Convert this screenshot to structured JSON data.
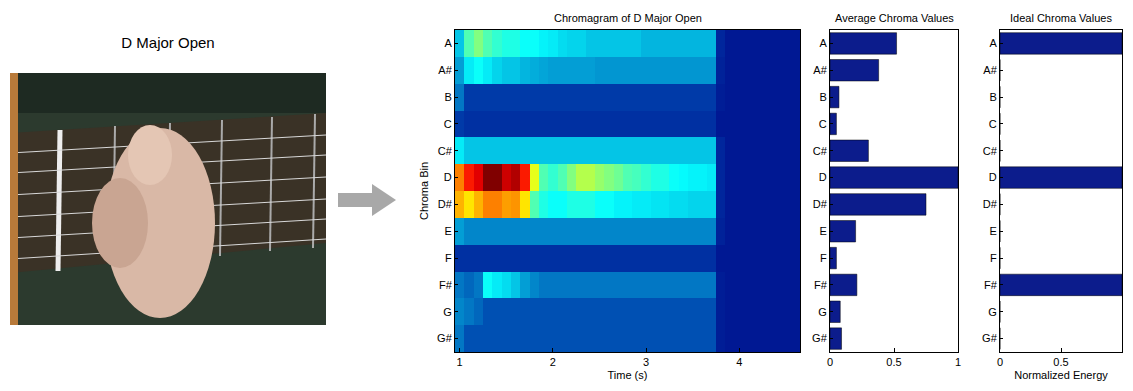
{
  "panel": {
    "title": "D Major Open"
  },
  "chart_data": [
    {
      "type": "heatmap",
      "title": "Chromagram of D Major Open",
      "x_label": "Time (s)",
      "y_label": "Chroma Bin",
      "x": [
        1.0,
        1.1,
        1.2,
        1.3,
        1.4,
        1.5,
        1.6,
        1.7,
        1.8,
        1.9,
        2.0,
        2.1,
        2.2,
        2.3,
        2.4,
        2.5,
        2.6,
        2.7,
        2.8,
        2.9,
        3.0,
        3.1,
        3.2,
        3.3,
        3.4,
        3.5,
        3.6,
        3.7,
        3.8,
        3.9,
        4.0,
        4.1,
        4.2,
        4.3,
        4.4,
        4.5,
        4.6
      ],
      "categories": [
        "A",
        "A#",
        "B",
        "C",
        "C#",
        "D",
        "D#",
        "E",
        "F",
        "F#",
        "G",
        "G#"
      ],
      "cells": [
        [
          0.3,
          0.45,
          0.5,
          0.45,
          0.42,
          0.4,
          0.4,
          0.38,
          0.38,
          0.36,
          0.35,
          0.33,
          0.32,
          0.32,
          0.3,
          0.3,
          0.3,
          0.3,
          0.3,
          0.3,
          0.28,
          0.28,
          0.28,
          0.28,
          0.28,
          0.28,
          0.28,
          0.28,
          0.08,
          0.05,
          0.05,
          0.05,
          0.05,
          0.05,
          0.05,
          0.05,
          0.05
        ],
        [
          0.25,
          0.35,
          0.38,
          0.35,
          0.32,
          0.3,
          0.3,
          0.28,
          0.27,
          0.26,
          0.25,
          0.25,
          0.25,
          0.25,
          0.25,
          0.24,
          0.24,
          0.24,
          0.24,
          0.24,
          0.24,
          0.24,
          0.24,
          0.24,
          0.24,
          0.24,
          0.24,
          0.24,
          0.07,
          0.05,
          0.05,
          0.05,
          0.05,
          0.05,
          0.05,
          0.05,
          0.05
        ],
        [
          0.2,
          0.12,
          0.12,
          0.12,
          0.12,
          0.12,
          0.12,
          0.12,
          0.12,
          0.12,
          0.12,
          0.12,
          0.12,
          0.12,
          0.12,
          0.12,
          0.12,
          0.12,
          0.12,
          0.12,
          0.12,
          0.12,
          0.12,
          0.12,
          0.12,
          0.12,
          0.12,
          0.12,
          0.06,
          0.05,
          0.05,
          0.05,
          0.05,
          0.05,
          0.05,
          0.05,
          0.05
        ],
        [
          0.12,
          0.1,
          0.1,
          0.1,
          0.1,
          0.1,
          0.1,
          0.1,
          0.1,
          0.1,
          0.1,
          0.1,
          0.1,
          0.1,
          0.1,
          0.1,
          0.1,
          0.1,
          0.1,
          0.1,
          0.1,
          0.1,
          0.1,
          0.1,
          0.1,
          0.1,
          0.1,
          0.1,
          0.05,
          0.05,
          0.05,
          0.05,
          0.05,
          0.05,
          0.05,
          0.05,
          0.05
        ],
        [
          0.35,
          0.3,
          0.3,
          0.3,
          0.3,
          0.3,
          0.3,
          0.3,
          0.3,
          0.3,
          0.3,
          0.3,
          0.3,
          0.3,
          0.3,
          0.3,
          0.3,
          0.3,
          0.3,
          0.3,
          0.3,
          0.3,
          0.3,
          0.3,
          0.3,
          0.3,
          0.3,
          0.3,
          0.08,
          0.05,
          0.05,
          0.05,
          0.05,
          0.05,
          0.05,
          0.05,
          0.05
        ],
        [
          0.75,
          0.85,
          0.9,
          1,
          1,
          0.92,
          0.95,
          0.85,
          0.6,
          0.45,
          0.42,
          0.45,
          0.5,
          0.55,
          0.55,
          0.52,
          0.5,
          0.48,
          0.45,
          0.44,
          0.42,
          0.4,
          0.4,
          0.38,
          0.37,
          0.36,
          0.36,
          0.35,
          0.08,
          0.05,
          0.05,
          0.05,
          0.05,
          0.05,
          0.05,
          0.05,
          0.05
        ],
        [
          0.7,
          0.65,
          0.7,
          0.75,
          0.75,
          0.72,
          0.73,
          0.65,
          0.45,
          0.4,
          0.38,
          0.38,
          0.4,
          0.4,
          0.4,
          0.38,
          0.38,
          0.36,
          0.36,
          0.35,
          0.35,
          0.34,
          0.34,
          0.33,
          0.33,
          0.32,
          0.32,
          0.32,
          0.08,
          0.05,
          0.05,
          0.05,
          0.05,
          0.05,
          0.05,
          0.05,
          0.05
        ],
        [
          0.25,
          0.22,
          0.22,
          0.22,
          0.22,
          0.22,
          0.22,
          0.22,
          0.22,
          0.22,
          0.22,
          0.22,
          0.22,
          0.22,
          0.22,
          0.22,
          0.22,
          0.22,
          0.22,
          0.22,
          0.22,
          0.22,
          0.22,
          0.22,
          0.22,
          0.22,
          0.22,
          0.22,
          0.07,
          0.05,
          0.05,
          0.05,
          0.05,
          0.05,
          0.05,
          0.05,
          0.05
        ],
        [
          0.1,
          0.1,
          0.1,
          0.1,
          0.1,
          0.1,
          0.1,
          0.1,
          0.1,
          0.1,
          0.1,
          0.1,
          0.1,
          0.1,
          0.1,
          0.1,
          0.1,
          0.1,
          0.1,
          0.1,
          0.1,
          0.1,
          0.1,
          0.1,
          0.1,
          0.1,
          0.1,
          0.1,
          0.05,
          0.05,
          0.05,
          0.05,
          0.05,
          0.05,
          0.05,
          0.05,
          0.05
        ],
        [
          0.2,
          0.18,
          0.2,
          0.38,
          0.35,
          0.33,
          0.3,
          0.25,
          0.22,
          0.2,
          0.2,
          0.2,
          0.2,
          0.2,
          0.2,
          0.2,
          0.2,
          0.2,
          0.2,
          0.2,
          0.2,
          0.2,
          0.2,
          0.2,
          0.2,
          0.2,
          0.2,
          0.2,
          0.06,
          0.05,
          0.05,
          0.05,
          0.05,
          0.05,
          0.05,
          0.05,
          0.05
        ],
        [
          0.22,
          0.2,
          0.18,
          0.15,
          0.15,
          0.15,
          0.15,
          0.15,
          0.15,
          0.15,
          0.15,
          0.15,
          0.15,
          0.15,
          0.15,
          0.15,
          0.15,
          0.15,
          0.15,
          0.15,
          0.15,
          0.15,
          0.15,
          0.15,
          0.15,
          0.15,
          0.15,
          0.15,
          0.06,
          0.05,
          0.05,
          0.05,
          0.05,
          0.05,
          0.05,
          0.05,
          0.05
        ],
        [
          0.2,
          0.15,
          0.15,
          0.15,
          0.15,
          0.15,
          0.15,
          0.15,
          0.15,
          0.15,
          0.15,
          0.15,
          0.15,
          0.15,
          0.15,
          0.15,
          0.15,
          0.15,
          0.15,
          0.15,
          0.15,
          0.15,
          0.15,
          0.15,
          0.15,
          0.15,
          0.15,
          0.15,
          0.06,
          0.05,
          0.05,
          0.05,
          0.05,
          0.05,
          0.05,
          0.05,
          0.05
        ]
      ],
      "zlim": [
        0,
        1
      ],
      "xlim": [
        0.95,
        4.65
      ],
      "xticks": [
        1,
        2,
        3,
        4
      ]
    },
    {
      "type": "bar",
      "orientation": "horizontal",
      "title": "Average Chroma Values",
      "categories": [
        "A",
        "A#",
        "B",
        "C",
        "C#",
        "D",
        "D#",
        "E",
        "F",
        "F#",
        "G",
        "G#"
      ],
      "values": [
        0.52,
        0.38,
        0.07,
        0.05,
        0.3,
        1.0,
        0.75,
        0.2,
        0.05,
        0.21,
        0.08,
        0.09
      ],
      "color": "#0c1c8c",
      "xlim": [
        0,
        1
      ],
      "xticks": [
        0,
        0.5,
        1
      ]
    },
    {
      "type": "bar",
      "orientation": "horizontal",
      "title": "Ideal Chroma Values",
      "x_label": "Normalized Energy",
      "categories": [
        "A",
        "A#",
        "B",
        "C",
        "C#",
        "D",
        "D#",
        "E",
        "F",
        "F#",
        "G",
        "G#"
      ],
      "values": [
        1,
        0,
        0,
        0,
        0,
        1,
        0,
        0,
        0,
        1,
        0,
        0
      ],
      "color": "#0c1c8c",
      "xlim": [
        0,
        1
      ],
      "xticks": [
        0,
        0.5
      ]
    }
  ]
}
